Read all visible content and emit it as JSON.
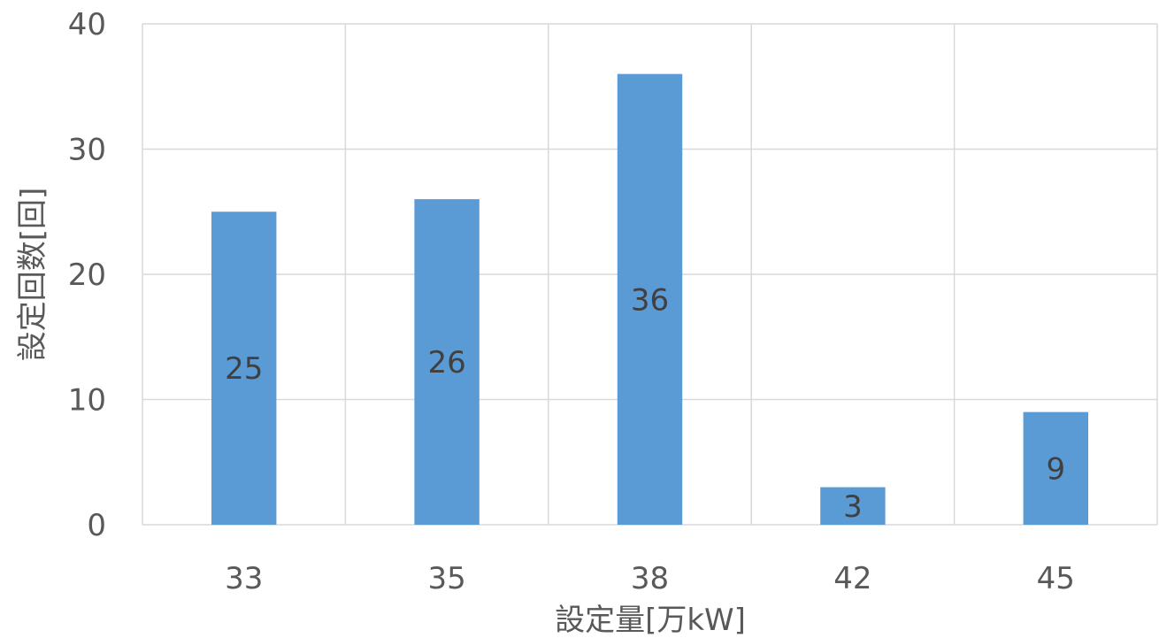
{
  "chart_data": {
    "type": "bar",
    "categories": [
      "33",
      "35",
      "38",
      "42",
      "45"
    ],
    "values": [
      25,
      26,
      36,
      3,
      9
    ],
    "data_labels": [
      "25",
      "26",
      "36",
      "3",
      "9"
    ],
    "xlabel": "設定量[万kW]",
    "ylabel": "設定回数[回]",
    "ylim": [
      0,
      40
    ],
    "yticks": [
      "0",
      "10",
      "20",
      "30",
      "40"
    ],
    "grid": true,
    "bar_color": "#5b9bd5",
    "grid_color": "#d9d9d9"
  }
}
